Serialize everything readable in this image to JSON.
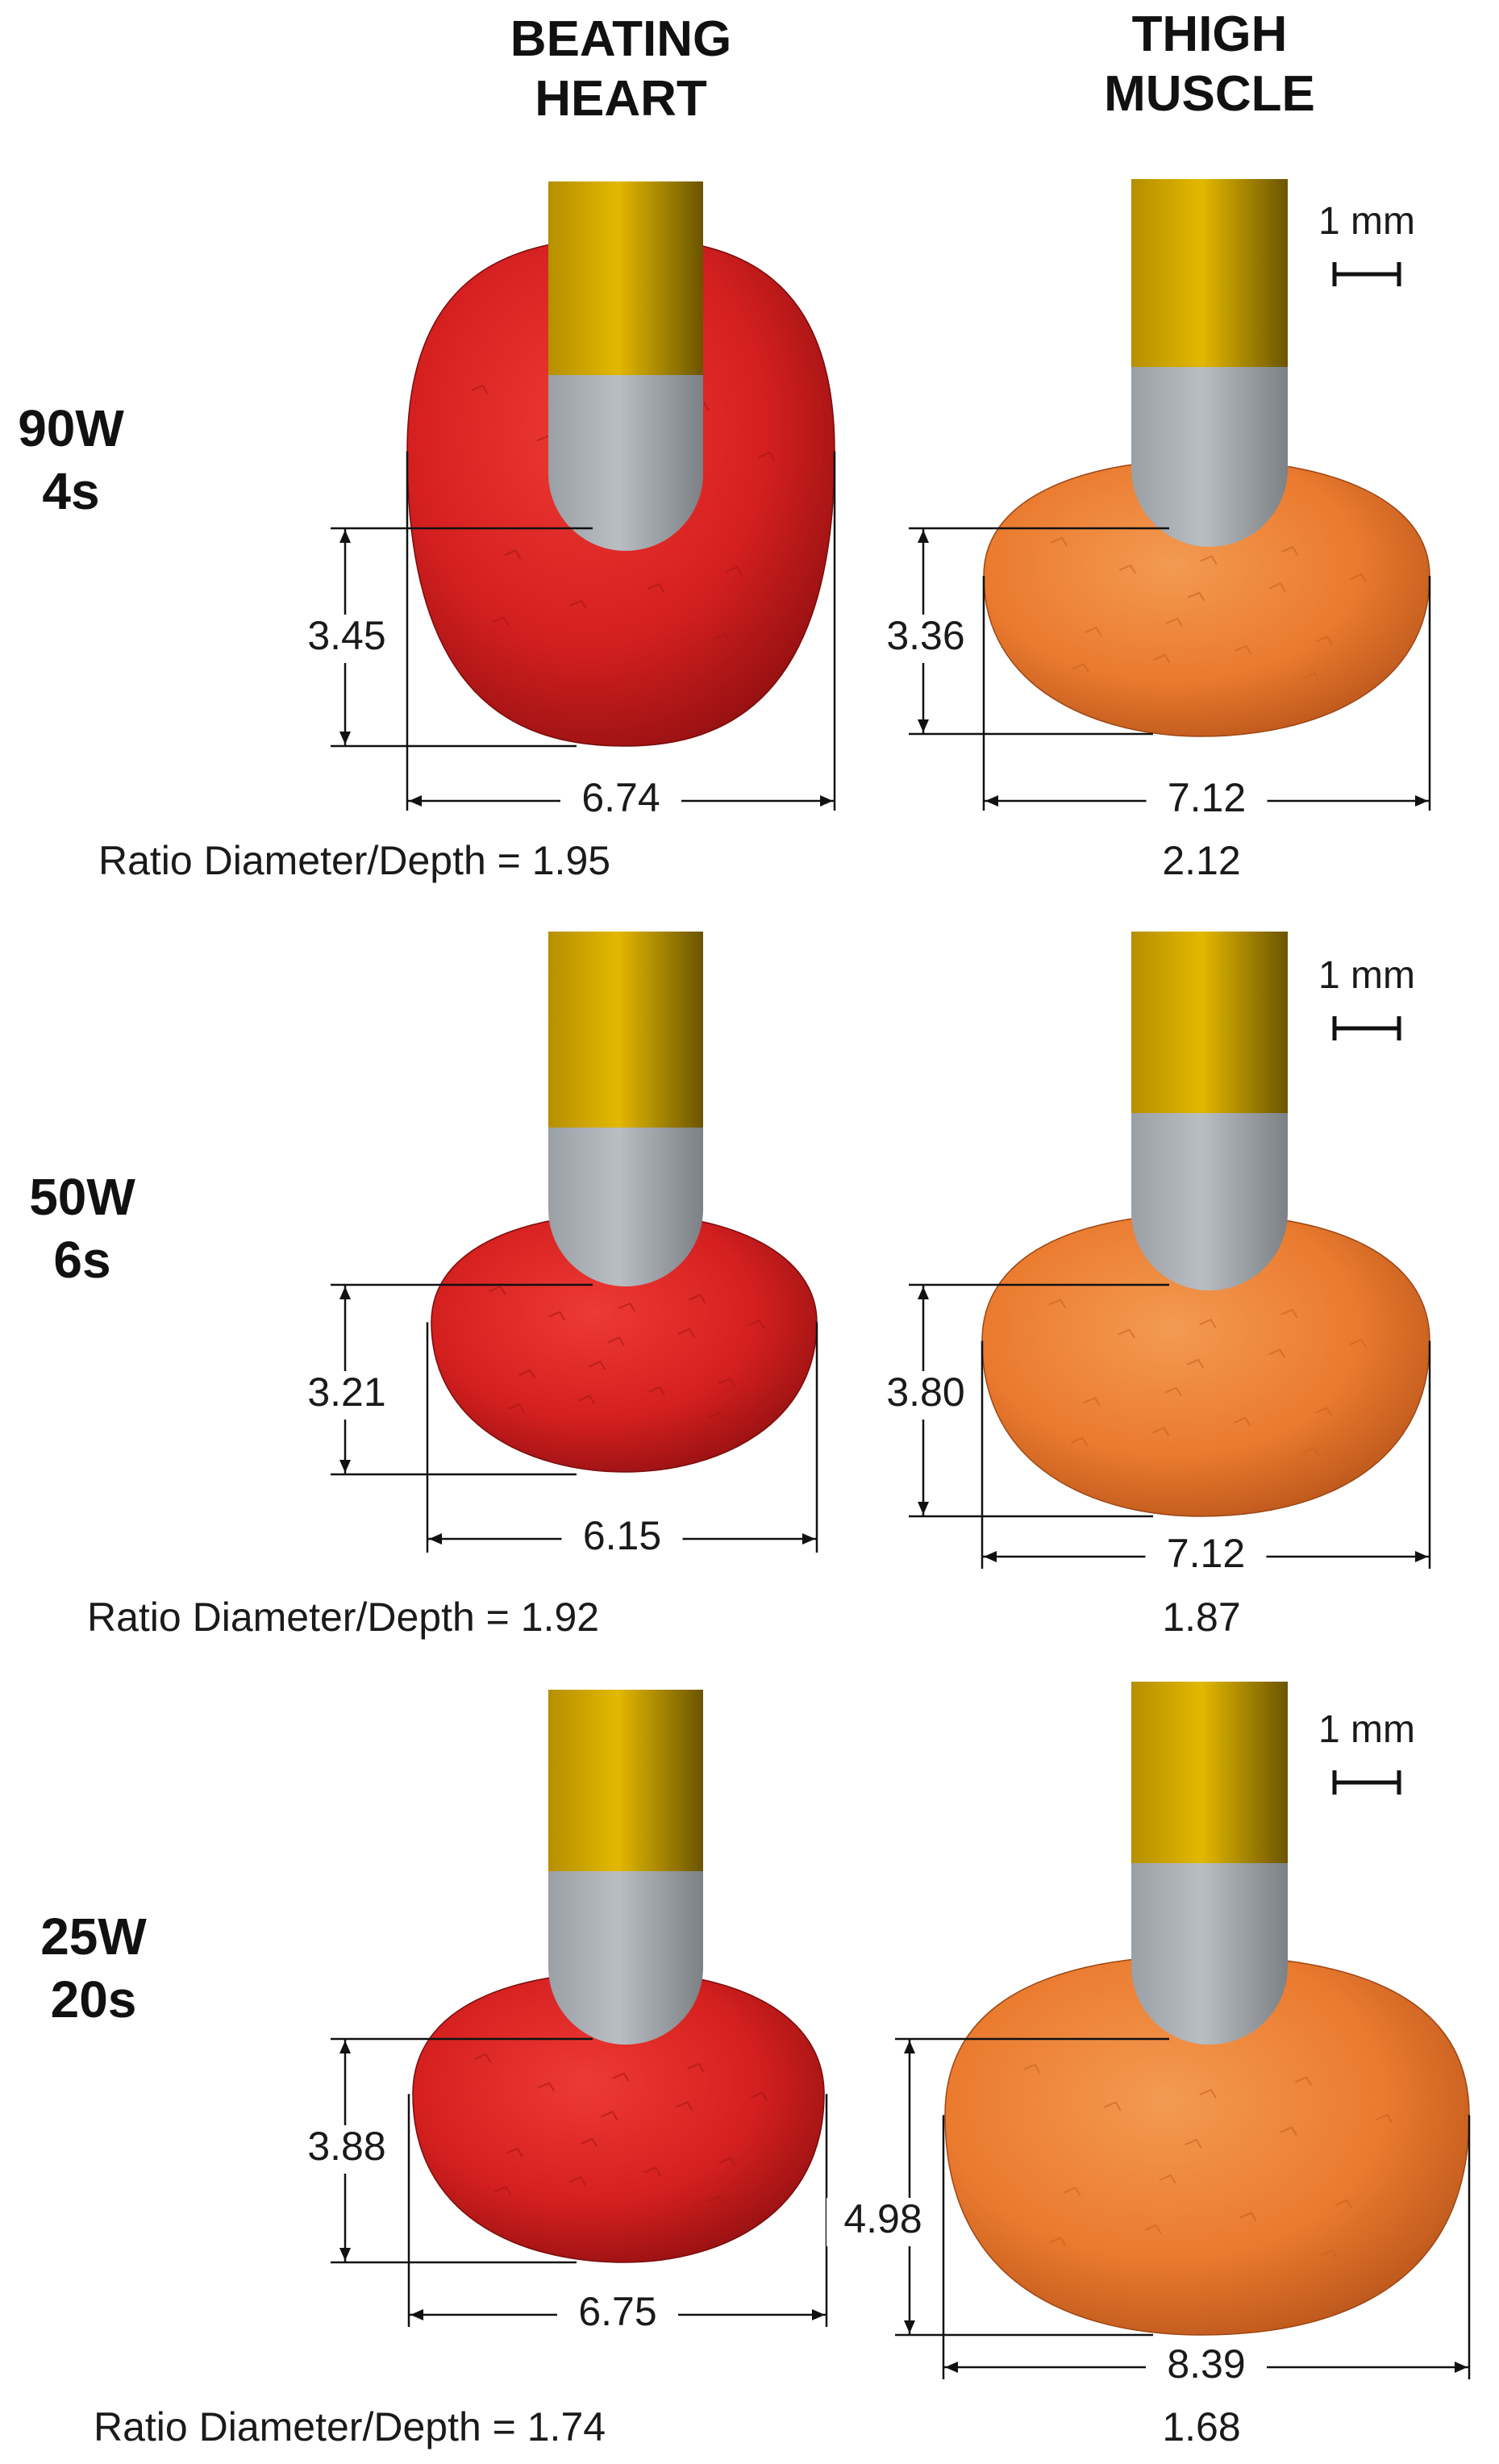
{
  "columns": [
    {
      "label_line1": "BEATING",
      "label_line2": "HEART"
    },
    {
      "label_line1": "THIGH",
      "label_line2": "MUSCLE"
    }
  ],
  "scale_bar_label": "1 mm",
  "ratio_prefix": "Ratio Diameter/Depth = ",
  "colors": {
    "heart_lesion": "#d41f1f",
    "thigh_lesion": "#ea7a2e",
    "electrode_gold": "#e3b800",
    "electrode_steel": "#b9bec3"
  },
  "rows": [
    {
      "power": "90W",
      "duration": "4s",
      "heart": {
        "depth": "3.45",
        "diameter": "6.74",
        "ratio": "1.95"
      },
      "thigh": {
        "depth": "3.36",
        "diameter": "7.12",
        "ratio": "2.12"
      }
    },
    {
      "power": "50W",
      "duration": "6s",
      "heart": {
        "depth": "3.21",
        "diameter": "6.15",
        "ratio": "1.92"
      },
      "thigh": {
        "depth": "3.80",
        "diameter": "7.12",
        "ratio": "1.87"
      }
    },
    {
      "power": "25W",
      "duration": "20s",
      "heart": {
        "depth": "3.88",
        "diameter": "6.75",
        "ratio": "1.74"
      },
      "thigh": {
        "depth": "4.98",
        "diameter": "8.39",
        "ratio": "1.68"
      }
    }
  ]
}
